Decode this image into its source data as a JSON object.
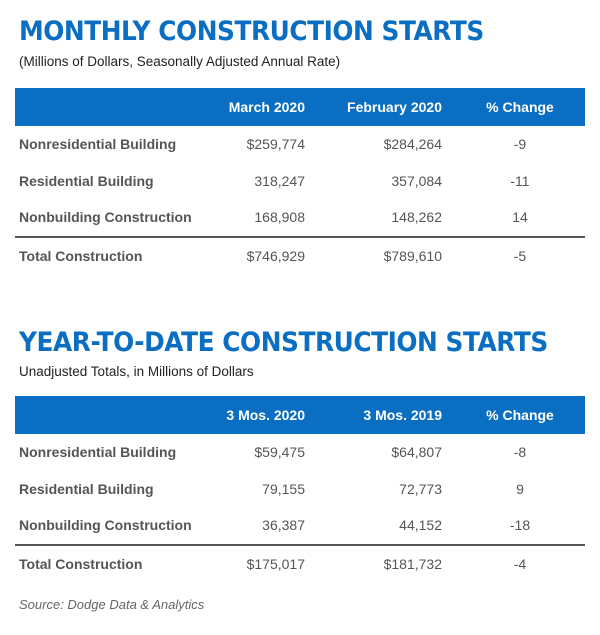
{
  "sections": [
    {
      "title": "MONTHLY CONSTRUCTION STARTS",
      "subtitle": "(Millions of Dollars, Seasonally Adjusted Annual Rate)",
      "columns": [
        "",
        "March 2020",
        "February 2020",
        "% Change"
      ],
      "rows": [
        [
          "Nonresidential Building",
          "$259,774",
          "$284,264",
          "-9"
        ],
        [
          "Residential Building",
          "318,247",
          "357,084",
          "-11"
        ],
        [
          "Nonbuilding Construction",
          "168,908",
          "148,262",
          "14"
        ]
      ],
      "total": [
        "Total Construction",
        "$746,929",
        "$789,610",
        "-5"
      ]
    },
    {
      "title": "YEAR-TO-DATE CONSTRUCTION STARTS",
      "subtitle": "Unadjusted Totals, in Millions of Dollars",
      "columns": [
        "",
        "3 Mos. 2020",
        "3 Mos. 2019",
        "% Change"
      ],
      "rows": [
        [
          "Nonresidential Building",
          "$59,475",
          "$64,807",
          "-8"
        ],
        [
          "Residential Building",
          "79,155",
          "72,773",
          "9"
        ],
        [
          "Nonbuilding Construction",
          "36,387",
          "44,152",
          "-18"
        ]
      ],
      "total": [
        "Total Construction",
        "$175,017",
        "$181,732",
        "-4"
      ]
    }
  ],
  "source": "Source: Dodge Data & Analytics",
  "colors": {
    "accent": "#0a6fc2",
    "text": "#4a4a4a"
  }
}
